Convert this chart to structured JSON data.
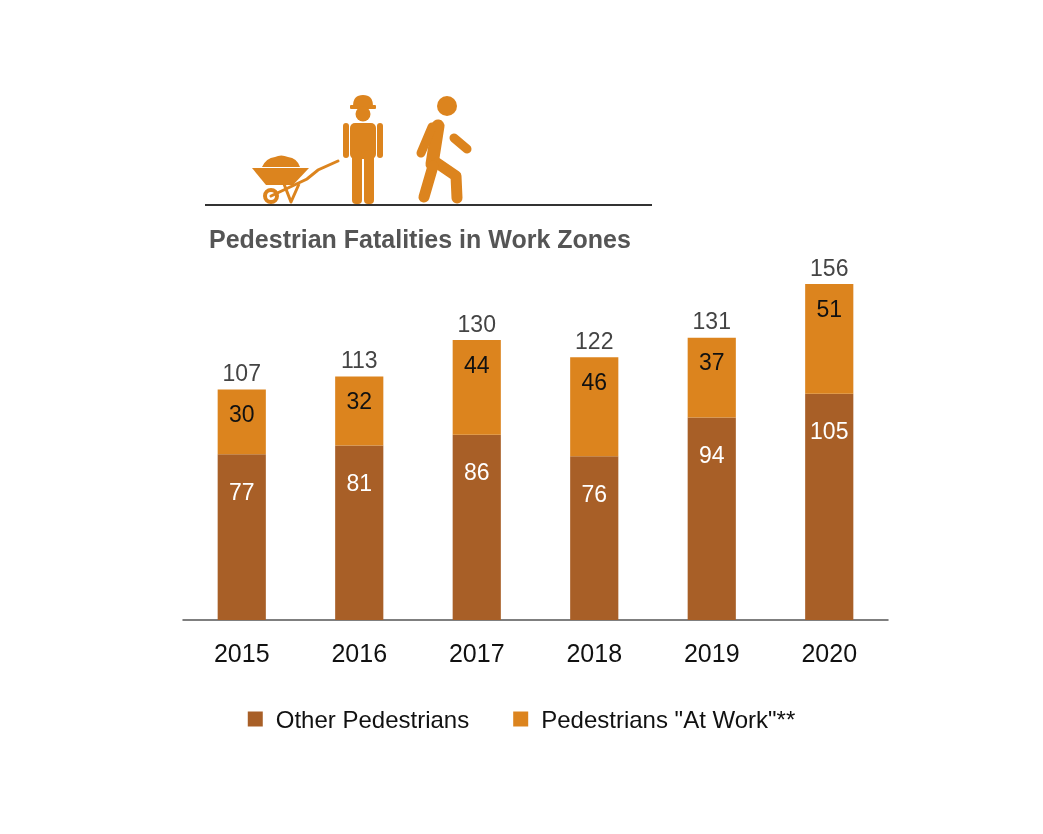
{
  "chart_data": {
    "type": "bar",
    "title": "Pedestrian Fatalities in Work Zones",
    "categories": [
      "2015",
      "2016",
      "2017",
      "2018",
      "2019",
      "2020"
    ],
    "series": [
      {
        "name": "Other Pedestrians",
        "color": "#a85f27",
        "values": [
          77,
          81,
          86,
          76,
          94,
          105
        ]
      },
      {
        "name": "Pedestrians \"At Work\"**",
        "color": "#dc841e",
        "values": [
          30,
          32,
          44,
          46,
          37,
          51
        ]
      }
    ],
    "stacked": true,
    "data_labels": true,
    "totals": [
      "107",
      "113",
      "130",
      "122",
      "131",
      "156"
    ],
    "legend": "bottom",
    "tick_labels": "x"
  }
}
